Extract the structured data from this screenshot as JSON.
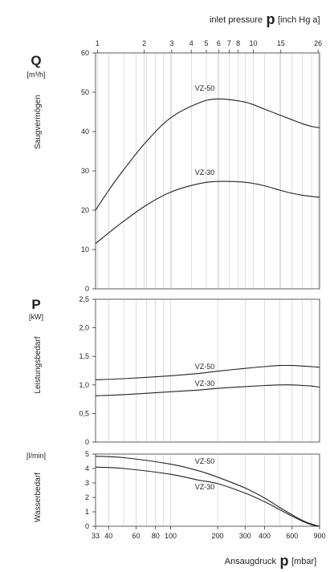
{
  "top_axis": {
    "label_prefix": "inlet pressure",
    "symbol": "p",
    "label_suffix": "[inch Hg a]",
    "ticks": [
      1,
      2,
      3,
      4,
      5,
      6,
      7,
      8,
      10,
      15,
      26
    ],
    "tick_mbar": [
      33.9,
      67.7,
      101.6,
      135.5,
      169.3,
      203.2,
      237.1,
      270.9,
      338.6,
      507.9,
      880.5
    ]
  },
  "bottom_axis": {
    "label_prefix": "Ansaugdruck",
    "symbol": "p",
    "label_suffix": "[mbar]",
    "ticks": [
      33,
      40,
      60,
      80,
      100,
      200,
      300,
      400,
      600,
      900
    ],
    "range": [
      33,
      900
    ],
    "scale": "log"
  },
  "panels": {
    "q": {
      "symbol": "Q",
      "unit": "[m³/h]",
      "title": "Saugvermögen",
      "ticks": [
        "0",
        "10",
        "20",
        "30",
        "40",
        "50",
        "60"
      ]
    },
    "p": {
      "symbol": "P",
      "unit": "[kW]",
      "title": "Leistungsbedarf",
      "ticks": [
        "0",
        "0,5",
        "1,0",
        "1,5",
        "2,0",
        "2,5"
      ]
    },
    "w": {
      "unit": "[l/min]",
      "title": "Wasserbedarf",
      "ticks": [
        "0",
        "1",
        "2",
        "3",
        "4",
        "5"
      ]
    }
  },
  "chart_data": [
    {
      "type": "line",
      "xlabel": "Ansaugdruck p [mbar]",
      "ylabel": "Q [m³/h] Saugvermögen",
      "ylim": [
        0,
        60
      ],
      "xscale": "log",
      "series": [
        {
          "name": "VZ-50",
          "x": [
            33,
            40,
            50,
            70,
            100,
            150,
            200,
            300,
            400,
            500,
            600,
            700,
            800,
            900
          ],
          "y": [
            20.0,
            25.0,
            30.3,
            37.5,
            43.5,
            47.2,
            48.3,
            47.5,
            45.7,
            44.2,
            43.0,
            42.0,
            41.3,
            41.0
          ]
        },
        {
          "name": "VZ-30",
          "x": [
            33,
            40,
            50,
            70,
            100,
            150,
            200,
            300,
            400,
            500,
            600,
            700,
            800,
            900
          ],
          "y": [
            11.5,
            14.2,
            17.2,
            21.3,
            24.6,
            26.7,
            27.3,
            27.1,
            26.2,
            25.1,
            24.3,
            23.8,
            23.5,
            23.3
          ]
        }
      ]
    },
    {
      "type": "line",
      "xlabel": "Ansaugdruck p [mbar]",
      "ylabel": "P [kW] Leistungsbedarf",
      "ylim": [
        0,
        2.5
      ],
      "xscale": "log",
      "series": [
        {
          "name": "VZ-50",
          "x": [
            33,
            50,
            100,
            150,
            200,
            300,
            400,
            500,
            600,
            700,
            800,
            900
          ],
          "y": [
            1.09,
            1.11,
            1.16,
            1.2,
            1.24,
            1.29,
            1.32,
            1.34,
            1.34,
            1.33,
            1.32,
            1.31
          ]
        },
        {
          "name": "VZ-30",
          "x": [
            33,
            50,
            100,
            150,
            200,
            300,
            400,
            500,
            600,
            700,
            800,
            900
          ],
          "y": [
            0.81,
            0.83,
            0.88,
            0.91,
            0.94,
            0.97,
            0.99,
            1.0,
            1.0,
            0.99,
            0.98,
            0.96
          ]
        }
      ]
    },
    {
      "type": "line",
      "xlabel": "Ansaugdruck p [mbar]",
      "ylabel": "[l/min] Wasserbedarf",
      "ylim": [
        0,
        5
      ],
      "xscale": "log",
      "series": [
        {
          "name": "VZ-50",
          "x": [
            33,
            50,
            100,
            150,
            200,
            300,
            400,
            500,
            600,
            700,
            800,
            900
          ],
          "y": [
            4.85,
            4.75,
            4.3,
            3.85,
            3.4,
            2.65,
            1.95,
            1.3,
            0.8,
            0.4,
            0.15,
            0.0
          ]
        },
        {
          "name": "VZ-30",
          "x": [
            33,
            50,
            100,
            150,
            200,
            300,
            400,
            500,
            600,
            700,
            800,
            900
          ],
          "y": [
            4.1,
            4.0,
            3.6,
            3.2,
            2.95,
            2.3,
            1.7,
            1.15,
            0.7,
            0.35,
            0.1,
            0.0
          ]
        }
      ]
    }
  ]
}
